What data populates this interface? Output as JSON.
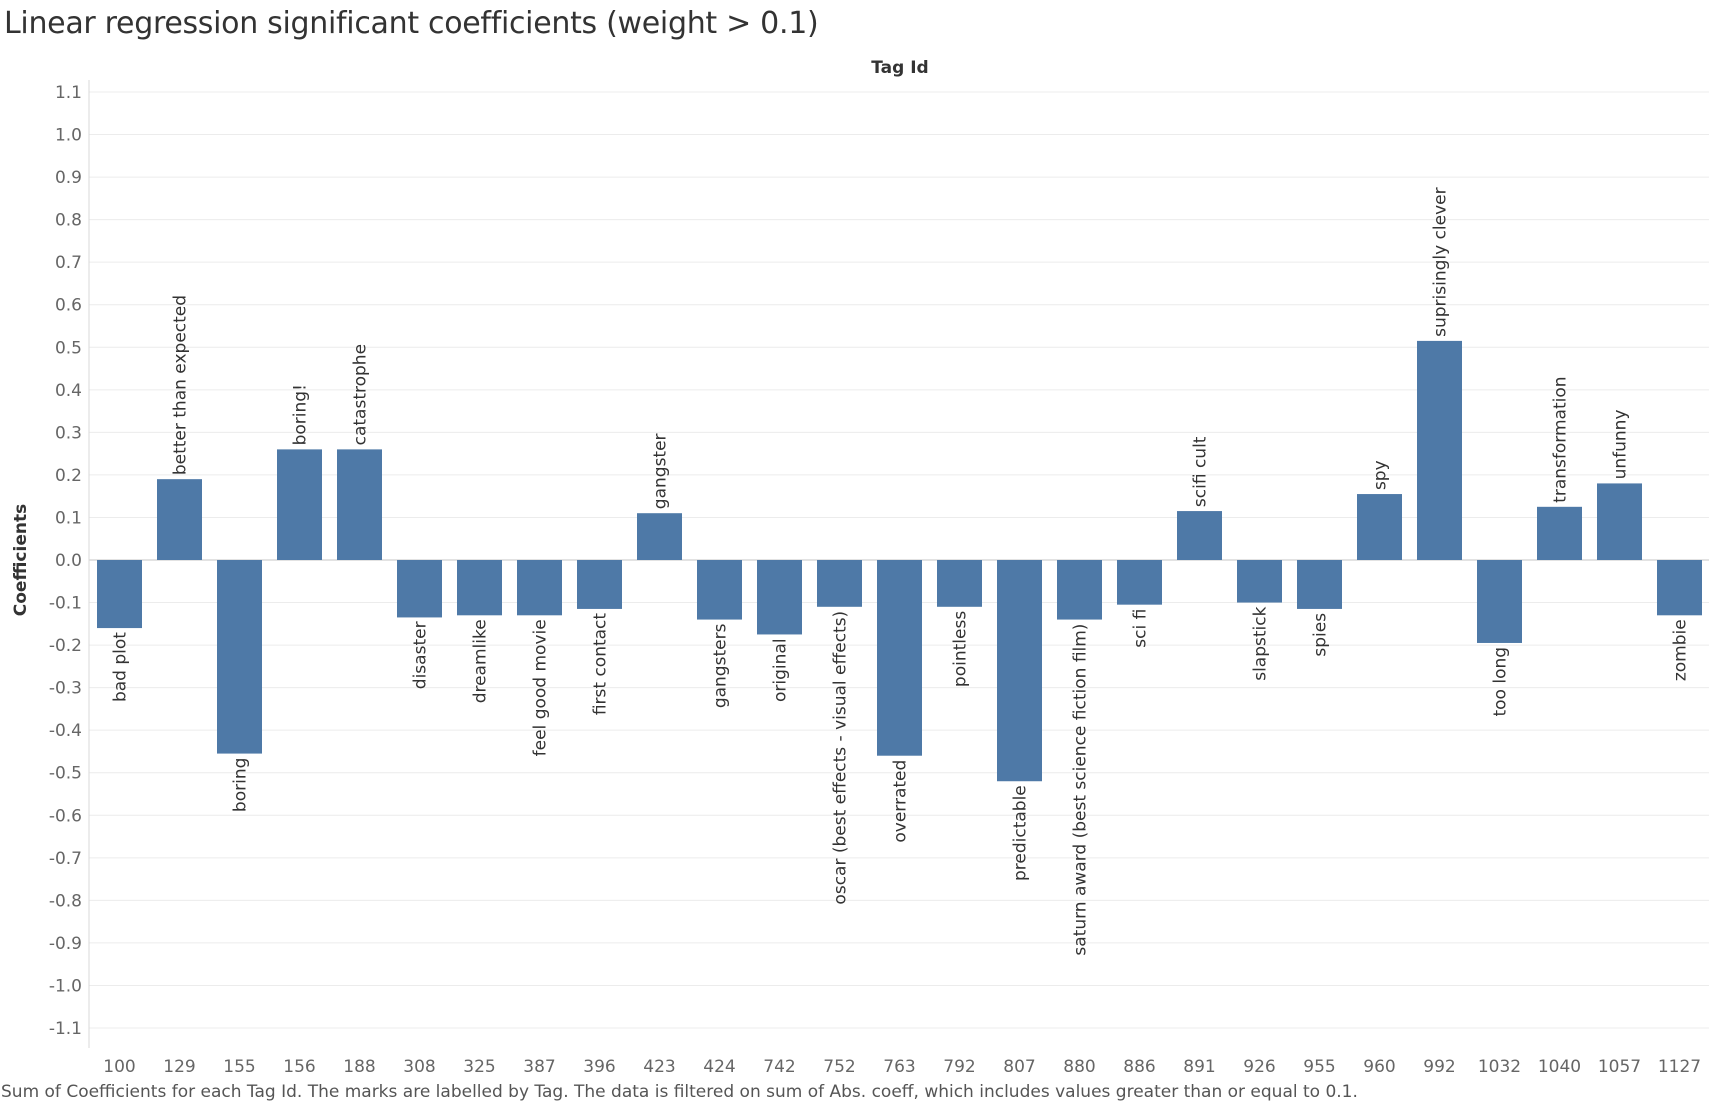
{
  "title": "Linear regression significant coefficients (weight > 0.1)",
  "caption": "Sum of Coefficients for each Tag Id.  The marks are labelled by Tag. The data is filtered on sum of Abs. coeff, which includes values greater than or equal to 0.1.",
  "colors": {
    "bar": "#4e79a7",
    "grid": "#ececec",
    "zero_line": "#d9d9d9"
  },
  "chart_data": {
    "type": "bar",
    "title": "Linear regression significant coefficients (weight > 0.1)",
    "xlabel": "Tag Id",
    "ylabel": "Coefficients",
    "x_axis_position": "top",
    "ylim": [
      -1.1,
      1.1
    ],
    "yticks": [
      1.1,
      1.0,
      0.9,
      0.8,
      0.7,
      0.6,
      0.5,
      0.4,
      0.3,
      0.2,
      0.1,
      0.0,
      -0.1,
      -0.2,
      -0.3,
      -0.4,
      -0.5,
      -0.6,
      -0.7,
      -0.8,
      -0.9,
      -1.0,
      -1.1
    ],
    "ytick_labels": [
      "1.1",
      "1.0",
      "0.9",
      "0.8",
      "0.7",
      "0.6",
      "0.5",
      "0.4",
      "0.3",
      "0.2",
      "0.1",
      "0.0",
      "-0.1",
      "-0.2",
      "-0.3",
      "-0.4",
      "-0.5",
      "-0.6",
      "-0.7",
      "-0.8",
      "-0.9",
      "-1.0",
      "-1.1"
    ],
    "grid": true,
    "categories": [
      "100",
      "129",
      "155",
      "156",
      "188",
      "308",
      "325",
      "387",
      "396",
      "423",
      "424",
      "742",
      "752",
      "763",
      "792",
      "807",
      "880",
      "886",
      "891",
      "926",
      "955",
      "960",
      "992",
      "1032",
      "1040",
      "1057",
      "1127"
    ],
    "labels": [
      "bad plot",
      "better than expected",
      "boring",
      "boring!",
      "catastrophe",
      "disaster",
      "dreamlike",
      "feel good movie",
      "first contact",
      "gangster",
      "gangsters",
      "original",
      "oscar (best effects - visual effects)",
      "overrated",
      "pointless",
      "predictable",
      "saturn award (best science fiction film)",
      "sci fi",
      "scifi cult",
      "slapstick",
      "spies",
      "spy",
      "suprisingly clever",
      "too long",
      "transformation",
      "unfunny",
      "zombie"
    ],
    "values": [
      -0.16,
      0.19,
      -0.455,
      0.26,
      0.26,
      -0.135,
      -0.13,
      -0.13,
      -0.115,
      0.11,
      -0.14,
      -0.175,
      -0.11,
      -0.46,
      -0.11,
      -0.52,
      -0.14,
      -0.105,
      0.115,
      -0.1,
      -0.115,
      0.155,
      0.515,
      -0.195,
      0.125,
      0.18,
      -0.13
    ]
  }
}
